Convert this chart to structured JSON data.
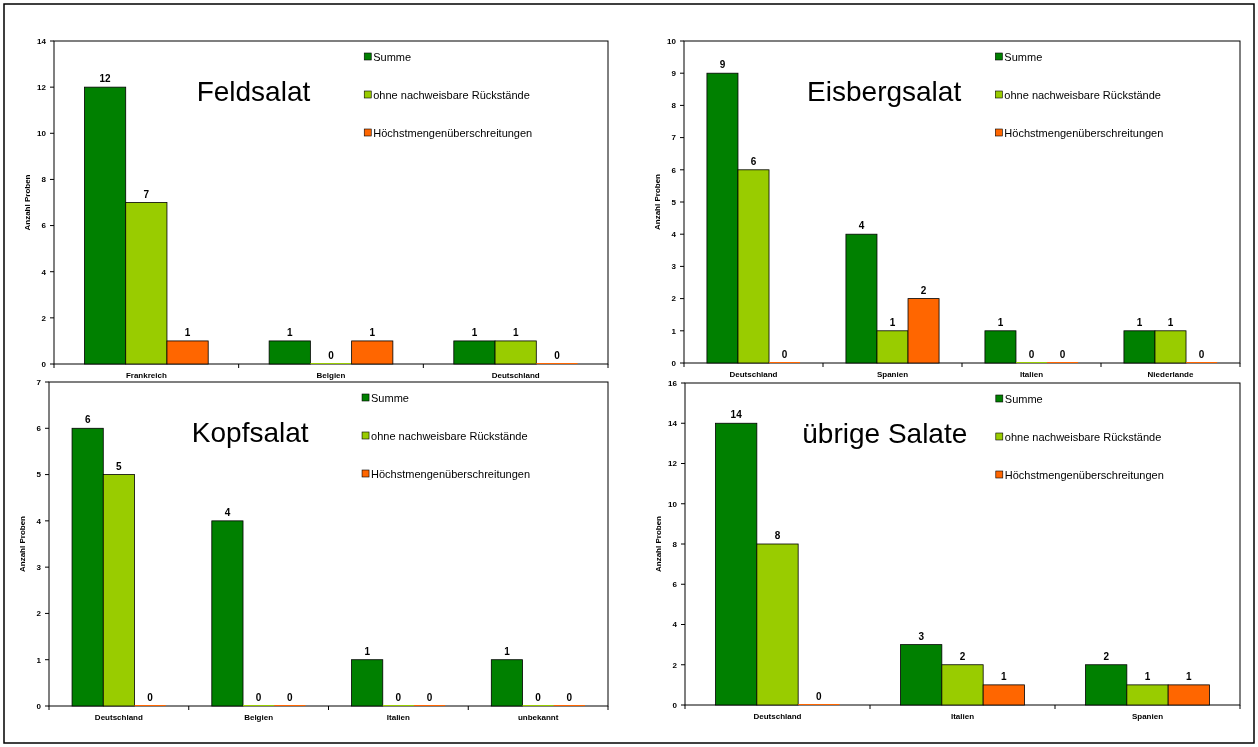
{
  "chart_data": [
    {
      "type": "bar",
      "title": "Feldsalat",
      "ylabel": "Anzahl Proben",
      "categories": [
        "Frankreich",
        "Belgien",
        "Deutschland"
      ],
      "series": [
        {
          "name": "Summe",
          "color": "#008000",
          "values": [
            12,
            1,
            1
          ]
        },
        {
          "name": "ohne nachweisbare Rückstände",
          "color": "#99cc00",
          "values": [
            7,
            0,
            1
          ]
        },
        {
          "name": "Höchstmengenüberschreitungen",
          "color": "#ff6600",
          "values": [
            1,
            1,
            0
          ]
        }
      ],
      "ylim": [
        0,
        14
      ],
      "yticks": [
        0,
        2,
        4,
        6,
        8,
        10,
        12,
        14
      ],
      "data_labels": true,
      "legend": "top right",
      "grid": false
    },
    {
      "type": "bar",
      "title": "Eisbergsalat",
      "ylabel": "Anzahl Proben",
      "categories": [
        "Deutschland",
        "Spanien",
        "Italien",
        "Niederlande"
      ],
      "series": [
        {
          "name": "Summe",
          "color": "#008000",
          "values": [
            9,
            4,
            1,
            1
          ]
        },
        {
          "name": "ohne nachweisbare Rückstände",
          "color": "#99cc00",
          "values": [
            6,
            1,
            0,
            1
          ]
        },
        {
          "name": "Höchstmengenüberschreitungen",
          "color": "#ff6600",
          "values": [
            0,
            2,
            0,
            0
          ]
        }
      ],
      "ylim": [
        0,
        10
      ],
      "yticks": [
        0,
        1,
        2,
        3,
        4,
        5,
        6,
        7,
        8,
        9,
        10
      ],
      "data_labels": true,
      "legend": "top right",
      "grid": false
    },
    {
      "type": "bar",
      "title": "Kopfsalat",
      "ylabel": "Anzahl Proben",
      "categories": [
        "Deutschland",
        "Belgien",
        "Italien",
        "unbekannt"
      ],
      "series": [
        {
          "name": "Summe",
          "color": "#008000",
          "values": [
            6,
            4,
            1,
            1
          ]
        },
        {
          "name": "ohne nachweisbare Rückstände",
          "color": "#99cc00",
          "values": [
            5,
            0,
            0,
            0
          ]
        },
        {
          "name": "Höchstmengenüberschreitungen",
          "color": "#ff6600",
          "values": [
            0,
            0,
            0,
            0
          ]
        }
      ],
      "ylim": [
        0,
        7
      ],
      "yticks": [
        0,
        1,
        2,
        3,
        4,
        5,
        6,
        7
      ],
      "data_labels": true,
      "legend": "top right",
      "grid": false
    },
    {
      "type": "bar",
      "title": "übrige Salate",
      "ylabel": "Anzahl Proben",
      "categories": [
        "Deutschland",
        "Italien",
        "Spanien"
      ],
      "series": [
        {
          "name": "Summe",
          "color": "#008000",
          "values": [
            14,
            3,
            2
          ]
        },
        {
          "name": "ohne nachweisbare Rückstände",
          "color": "#99cc00",
          "values": [
            8,
            2,
            1
          ]
        },
        {
          "name": "Höchstmengenüberschreitungen",
          "color": "#ff6600",
          "values": [
            0,
            1,
            1
          ]
        }
      ],
      "ylim": [
        0,
        16
      ],
      "yticks": [
        0,
        2,
        4,
        6,
        8,
        10,
        12,
        14,
        16
      ],
      "data_labels": true,
      "legend": "top right",
      "grid": false
    }
  ]
}
